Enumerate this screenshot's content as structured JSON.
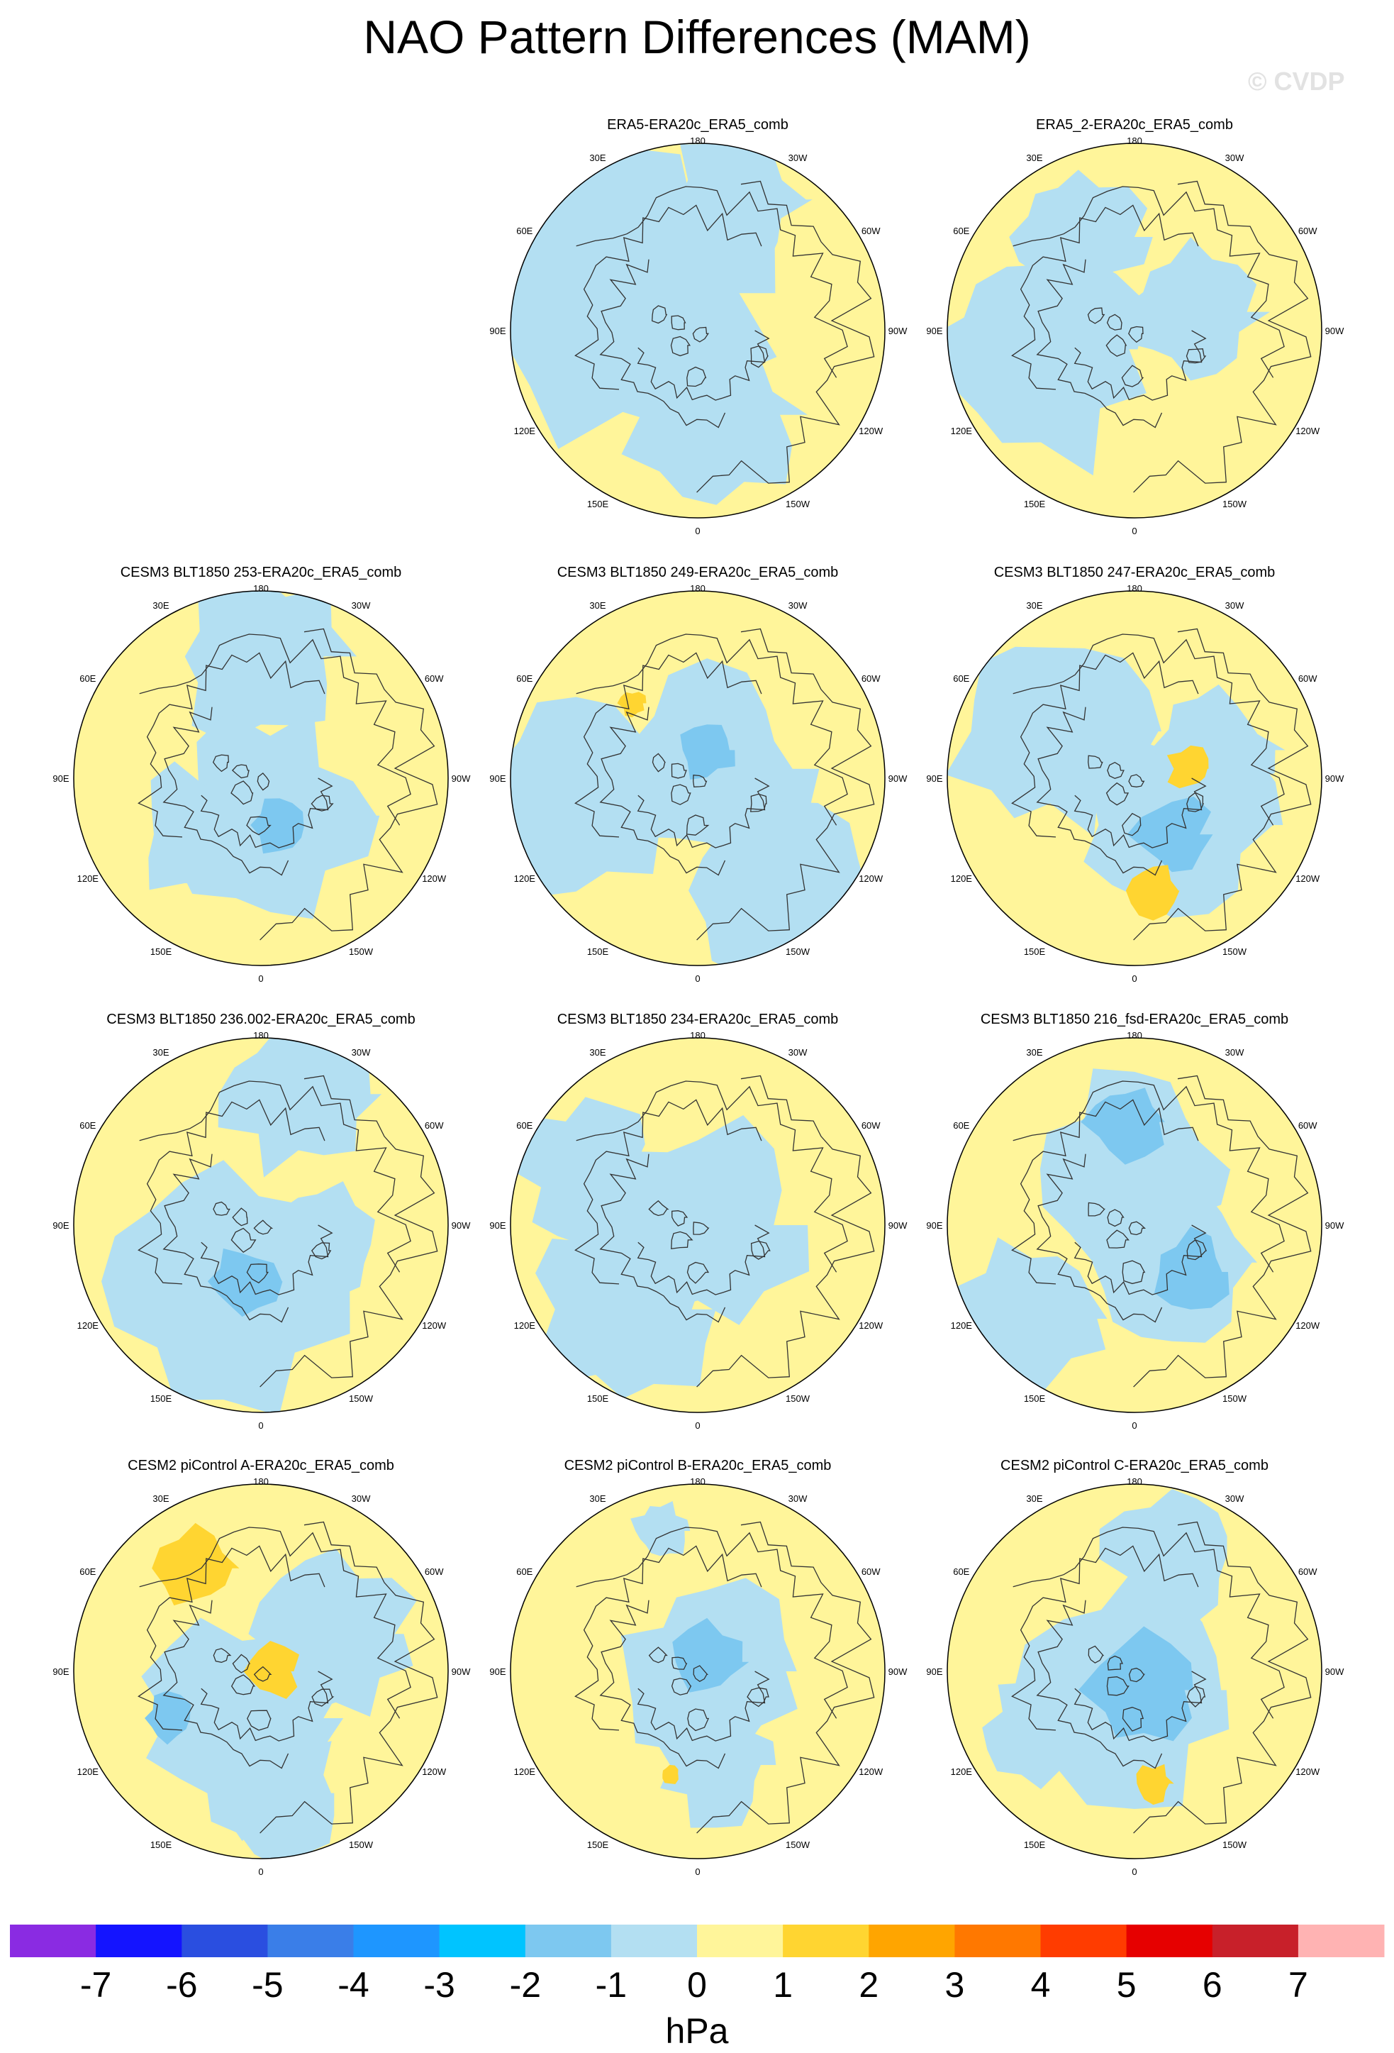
{
  "figure": {
    "title": "NAO Pattern Differences (MAM)",
    "watermark": "© CVDP"
  },
  "longitude_labels": [
    "180",
    "150E",
    "120E",
    "90E",
    "60E",
    "30E",
    "0",
    "30W",
    "60W",
    "90W",
    "120W",
    "150W"
  ],
  "panels": [
    {
      "title": "ERA5-ERA20c_ERA5_comb",
      "row": 0,
      "col": 1
    },
    {
      "title": "ERA5_2-ERA20c_ERA5_comb",
      "row": 0,
      "col": 2
    },
    {
      "title": "CESM3 BLT1850 253-ERA20c_ERA5_comb",
      "row": 1,
      "col": 0
    },
    {
      "title": "CESM3 BLT1850 249-ERA20c_ERA5_comb",
      "row": 1,
      "col": 1
    },
    {
      "title": "CESM3 BLT1850 247-ERA20c_ERA5_comb",
      "row": 1,
      "col": 2
    },
    {
      "title": "CESM3 BLT1850 236.002-ERA20c_ERA5_comb",
      "row": 2,
      "col": 0
    },
    {
      "title": "CESM3 BLT1850 234-ERA20c_ERA5_comb",
      "row": 2,
      "col": 1
    },
    {
      "title": "CESM3 BLT1850 216_fsd-ERA20c_ERA5_comb",
      "row": 2,
      "col": 2
    },
    {
      "title": "CESM2 piControl A-ERA20c_ERA5_comb",
      "row": 3,
      "col": 0
    },
    {
      "title": "CESM2 piControl B-ERA20c_ERA5_comb",
      "row": 3,
      "col": 1
    },
    {
      "title": "CESM2 piControl C-ERA20c_ERA5_comb",
      "row": 3,
      "col": 2
    }
  ],
  "colorbar": {
    "unit": "hPa",
    "tick_labels": [
      "-7",
      "-6",
      "-5",
      "-4",
      "-3",
      "-2",
      "-1",
      "0",
      "1",
      "2",
      "3",
      "4",
      "5",
      "6",
      "7"
    ],
    "colors": [
      "#8a2be2",
      "#1414ff",
      "#2a4ee0",
      "#3a7ee8",
      "#1e96ff",
      "#00c4ff",
      "#7dc8f0",
      "#b3dff2",
      "#fff59a",
      "#ffd531",
      "#ffa500",
      "#ff7800",
      "#ff3c00",
      "#e60000",
      "#c8202a",
      "#ffb3b3"
    ]
  },
  "colors": {
    "positive_fill": "#fff59a",
    "negative_fill": "#b3dff2",
    "strong_negative_fill": "#7dc8f0",
    "strong_positive_fill": "#ffd531",
    "coastline": "#333333"
  }
}
